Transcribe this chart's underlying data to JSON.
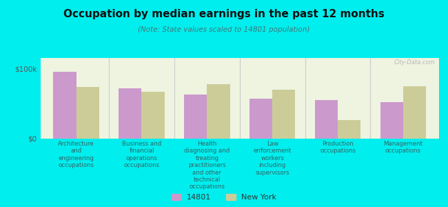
{
  "title": "Occupation by median earnings in the past 12 months",
  "subtitle": "(Note: State values scaled to 14801 population)",
  "categories": [
    "Architecture\nand\nengineering\noccupations",
    "Business and\nfinancial\noperations\noccupations",
    "Health\ndiagnosing and\ntreating\npractitioners\nand other\ntechnical\noccupations",
    "Law\nenforcement\nworkers\nincluding\nsupervisors",
    "Production\noccupations",
    "Management\noccupations"
  ],
  "values_14801": [
    95000,
    72000,
    63000,
    57000,
    55000,
    52000
  ],
  "values_ny": [
    74000,
    67000,
    78000,
    70000,
    27000,
    75000
  ],
  "color_14801": "#cc99cc",
  "color_ny": "#cccc99",
  "bar_width": 0.35,
  "ylim": [
    0,
    115000
  ],
  "yticks": [
    0,
    100000
  ],
  "ytick_labels": [
    "$0",
    "$100k"
  ],
  "legend_labels": [
    "14801",
    "New York"
  ],
  "plot_bg": "#eef4e0",
  "outer_bg": "#00eeee",
  "watermark": "City-Data.com",
  "title_color": "#111111",
  "subtitle_color": "#447777",
  "xlabel_color": "#336666"
}
